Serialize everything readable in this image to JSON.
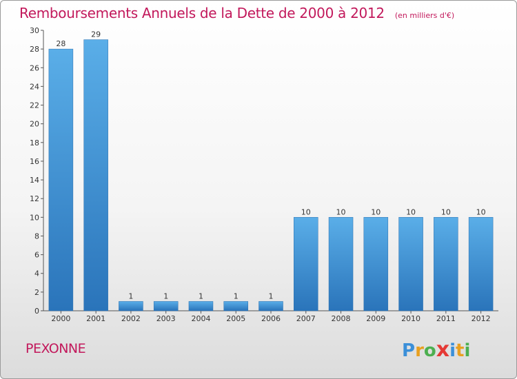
{
  "chart_data": {
    "type": "bar",
    "title": "Remboursements Annuels de la Dette de 2000 à 2012",
    "unit": "(en milliers d'€)",
    "categories": [
      "2000",
      "2001",
      "2002",
      "2003",
      "2004",
      "2005",
      "2006",
      "2007",
      "2008",
      "2009",
      "2010",
      "2011",
      "2012"
    ],
    "values": [
      28,
      29,
      1,
      1,
      1,
      1,
      1,
      10,
      10,
      10,
      10,
      10,
      10
    ],
    "ylim": [
      0,
      30
    ],
    "yticks": [
      0,
      2,
      4,
      6,
      8,
      10,
      12,
      14,
      16,
      18,
      20,
      22,
      24,
      26,
      28,
      30
    ],
    "grid": false,
    "colors": {
      "bar": "#4a9fe0",
      "bar_dark": "#2b78c0",
      "title": "#c2185b"
    }
  },
  "footer": {
    "commune": "PEXONNE",
    "logo": {
      "letters": [
        "P",
        "r",
        "o",
        "x",
        "i",
        "t",
        "i"
      ],
      "colors": [
        "#3b8fd8",
        "#e8a020",
        "#4caf50",
        "#e53935",
        "#3b8fd8",
        "#e8a020",
        "#4caf50"
      ]
    }
  }
}
